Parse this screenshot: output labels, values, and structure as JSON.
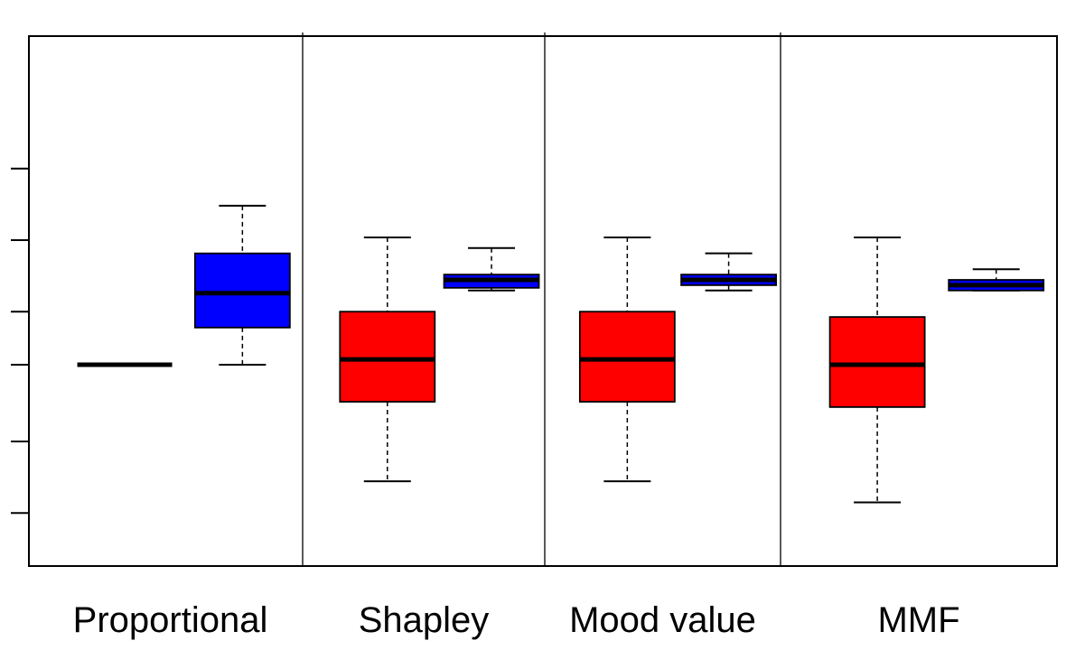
{
  "chart_data": {
    "type": "boxplot",
    "title": "",
    "xlabel": "",
    "ylabel": "",
    "ylim": [
      0.0,
      10.0
    ],
    "yticks": [
      1.0,
      2.35,
      3.8,
      4.8,
      6.15,
      7.5
    ],
    "categories": [
      "Proportional",
      "Shapley",
      "Mood value",
      "MMF"
    ],
    "colors": {
      "red": "#ff0000",
      "blue": "#0000ff"
    },
    "series": [
      {
        "name": "red",
        "color": "#ff0000",
        "boxes": [
          {
            "whisker_low": 3.8,
            "q1": 3.8,
            "median": 3.8,
            "q3": 3.8,
            "whisker_high": 3.8
          },
          {
            "whisker_low": 1.6,
            "q1": 3.1,
            "median": 3.9,
            "q3": 4.8,
            "whisker_high": 6.2
          },
          {
            "whisker_low": 1.6,
            "q1": 3.1,
            "median": 3.9,
            "q3": 4.8,
            "whisker_high": 6.2
          },
          {
            "whisker_low": 1.2,
            "q1": 3.0,
            "median": 3.8,
            "q3": 4.7,
            "whisker_high": 6.2
          }
        ]
      },
      {
        "name": "blue",
        "color": "#0000ff",
        "boxes": [
          {
            "whisker_low": 3.8,
            "q1": 4.5,
            "median": 5.15,
            "q3": 5.9,
            "whisker_high": 6.8
          },
          {
            "whisker_low": 5.2,
            "q1": 5.25,
            "median": 5.4,
            "q3": 5.5,
            "whisker_high": 6.0
          },
          {
            "whisker_low": 5.2,
            "q1": 5.3,
            "median": 5.4,
            "q3": 5.5,
            "whisker_high": 5.9
          },
          {
            "whisker_low": 5.2,
            "q1": 5.2,
            "median": 5.3,
            "q3": 5.4,
            "whisker_high": 5.6
          }
        ]
      }
    ]
  }
}
